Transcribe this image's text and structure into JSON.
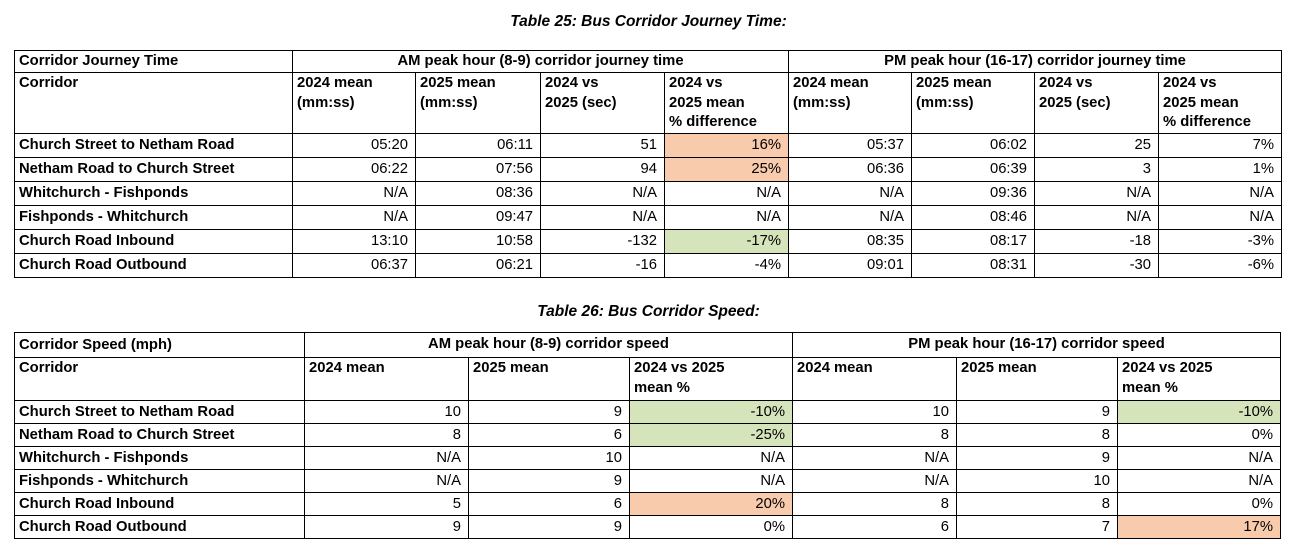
{
  "colors": {
    "increase_fill": "#F8CBAD",
    "decrease_fill": "#D6E4BC"
  },
  "tables": [
    {
      "title": "Table 25: Bus Corridor Journey Time:",
      "corner_header": "Corridor Journey Time",
      "row_header_label": "Corridor",
      "groups": [
        {
          "label": "AM peak hour (8-9) corridor journey time",
          "columns": [
            "2024 mean\n(mm:ss)",
            "2025 mean\n(mm:ss)",
            "2024 vs\n2025 (sec)",
            "2024 vs\n2025 mean\n% difference"
          ]
        },
        {
          "label": "PM peak hour (16-17) corridor journey time",
          "columns": [
            "2024 mean\n(mm:ss)",
            "2025 mean\n(mm:ss)",
            "2024 vs\n2025 (sec)",
            "2024 vs\n2025 mean\n% difference"
          ]
        }
      ],
      "rows": [
        {
          "label": "Church Street to Netham Road",
          "values": [
            "05:20",
            "06:11",
            "51",
            "16%",
            "05:37",
            "06:02",
            "25",
            "7%"
          ],
          "fills": [
            null,
            null,
            null,
            "orange",
            null,
            null,
            null,
            null
          ]
        },
        {
          "label": "Netham Road to Church Street",
          "values": [
            "06:22",
            "07:56",
            "94",
            "25%",
            "06:36",
            "06:39",
            "3",
            "1%"
          ],
          "fills": [
            null,
            null,
            null,
            "orange",
            null,
            null,
            null,
            null
          ]
        },
        {
          "label": "Whitchurch - Fishponds",
          "values": [
            "N/A",
            "08:36",
            "N/A",
            "N/A",
            "N/A",
            "09:36",
            "N/A",
            "N/A"
          ],
          "fills": [
            null,
            null,
            null,
            null,
            null,
            null,
            null,
            null
          ]
        },
        {
          "label": "Fishponds - Whitchurch",
          "values": [
            "N/A",
            "09:47",
            "N/A",
            "N/A",
            "N/A",
            "08:46",
            "N/A",
            "N/A"
          ],
          "fills": [
            null,
            null,
            null,
            null,
            null,
            null,
            null,
            null
          ]
        },
        {
          "label": "Church Road Inbound",
          "values": [
            "13:10",
            "10:58",
            "-132",
            "-17%",
            "08:35",
            "08:17",
            "-18",
            "-3%"
          ],
          "fills": [
            null,
            null,
            null,
            "green",
            null,
            null,
            null,
            null
          ]
        },
        {
          "label": "Church Road Outbound",
          "values": [
            "06:37",
            "06:21",
            "-16",
            "-4%",
            "09:01",
            "08:31",
            "-30",
            "-6%"
          ],
          "fills": [
            null,
            null,
            null,
            null,
            null,
            null,
            null,
            null
          ]
        }
      ]
    },
    {
      "title": "Table 26: Bus Corridor Speed:",
      "corner_header": "Corridor Speed (mph)",
      "row_header_label": "Corridor",
      "groups": [
        {
          "label": "AM peak hour (8-9) corridor speed",
          "columns": [
            "2024 mean",
            "2025 mean",
            "2024 vs 2025\nmean %"
          ]
        },
        {
          "label": "PM peak hour (16-17) corridor speed",
          "columns": [
            "2024 mean",
            "2025 mean",
            "2024 vs 2025\nmean %"
          ]
        }
      ],
      "rows": [
        {
          "label": "Church Street to Netham Road",
          "values": [
            "10",
            "9",
            "-10%",
            "10",
            "9",
            "-10%"
          ],
          "fills": [
            null,
            null,
            "green",
            null,
            null,
            "green"
          ]
        },
        {
          "label": "Netham Road to Church Street",
          "values": [
            "8",
            "6",
            "-25%",
            "8",
            "8",
            "0%"
          ],
          "fills": [
            null,
            null,
            "green",
            null,
            null,
            null
          ]
        },
        {
          "label": "Whitchurch - Fishponds",
          "values": [
            "N/A",
            "10",
            "N/A",
            "N/A",
            "9",
            "N/A"
          ],
          "fills": [
            null,
            null,
            null,
            null,
            null,
            null
          ]
        },
        {
          "label": "Fishponds - Whitchurch",
          "values": [
            "N/A",
            "9",
            "N/A",
            "N/A",
            "10",
            "N/A"
          ],
          "fills": [
            null,
            null,
            null,
            null,
            null,
            null
          ]
        },
        {
          "label": "Church Road Inbound",
          "values": [
            "5",
            "6",
            "20%",
            "8",
            "8",
            "0%"
          ],
          "fills": [
            null,
            null,
            "orange",
            null,
            null,
            null
          ]
        },
        {
          "label": "Church Road Outbound",
          "values": [
            "9",
            "9",
            "0%",
            "6",
            "7",
            "17%"
          ],
          "fills": [
            null,
            null,
            null,
            null,
            null,
            "orange"
          ]
        }
      ]
    }
  ]
}
